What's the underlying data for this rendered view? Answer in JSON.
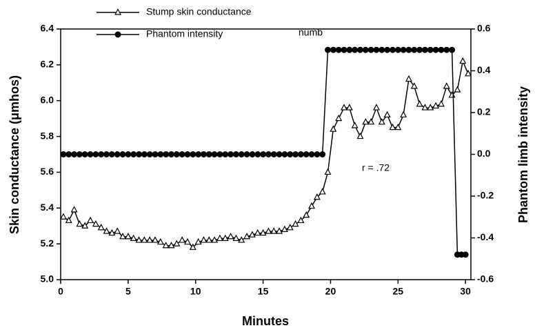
{
  "chart_data": {
    "type": "line",
    "legend": "upper left",
    "annotations": [
      "numb",
      "r = .72"
    ],
    "xlabel": "Minutes",
    "ylabel": "Skin conductance (μmhos)",
    "y2label": "Phantom limb intensity",
    "xlim": [
      0,
      30.4
    ],
    "xticks": [
      0,
      5,
      10,
      15,
      20,
      25,
      30
    ],
    "ylim": [
      5.0,
      6.4
    ],
    "yticks": [
      {
        "value": 5.0,
        "label": "5.0"
      },
      5.2,
      5.4,
      5.6,
      5.8,
      {
        "value": 6.0,
        "label": "6.0"
      },
      6.2,
      6.4
    ],
    "y2lim": [
      -0.6,
      0.6
    ],
    "y2ticks": [
      -0.6,
      -0.4,
      -0.2,
      {
        "value": 0.0,
        "label": "0.0"
      },
      0.2,
      0.4,
      0.6
    ],
    "series": [
      {
        "name": "Stump skin conductance",
        "color": "#000000",
        "marker": "triangle",
        "x": [
          0.2,
          0.6,
          1,
          1.4,
          1.8,
          2.2,
          2.6,
          3,
          3.4,
          3.8,
          4.2,
          4.6,
          5,
          5.4,
          5.8,
          6.2,
          6.6,
          7,
          7.4,
          7.8,
          8.2,
          8.6,
          9,
          9.4,
          9.8,
          10.2,
          10.6,
          11,
          11.4,
          11.8,
          12.2,
          12.6,
          13,
          13.4,
          13.8,
          14.2,
          14.6,
          15,
          15.4,
          15.8,
          16.2,
          16.6,
          17,
          17.4,
          17.8,
          18.2,
          18.6,
          19,
          19.4,
          19.8,
          20.2,
          20.6,
          21,
          21.4,
          21.8,
          22.2,
          22.6,
          23,
          23.4,
          23.8,
          24.2,
          24.6,
          25,
          25.4,
          25.8,
          26.2,
          26.6,
          27,
          27.4,
          27.8,
          28.2,
          28.6,
          29,
          29.4,
          29.8,
          30.2
        ],
        "values": [
          5.35,
          5.33,
          5.39,
          5.31,
          5.3,
          5.33,
          5.31,
          5.29,
          5.27,
          5.26,
          5.27,
          5.24,
          5.24,
          5.23,
          5.22,
          5.22,
          5.22,
          5.22,
          5.21,
          5.19,
          5.19,
          5.2,
          5.22,
          5.21,
          5.18,
          5.21,
          5.22,
          5.22,
          5.22,
          5.23,
          5.23,
          5.24,
          5.23,
          5.22,
          5.24,
          5.25,
          5.26,
          5.26,
          5.27,
          5.27,
          5.27,
          5.28,
          5.29,
          5.31,
          5.33,
          5.36,
          5.41,
          5.46,
          5.49,
          5.6,
          5.84,
          5.9,
          5.96,
          5.96,
          5.86,
          5.8,
          5.88,
          5.88,
          5.96,
          5.88,
          5.92,
          5.85,
          5.85,
          5.92,
          6.12,
          6.08,
          5.98,
          5.96,
          5.96,
          5.97,
          5.98,
          6.08,
          6.03,
          6.06,
          6.22,
          6.15
        ]
      },
      {
        "name": "Phantom intensity",
        "color": "#000000",
        "marker": "circle",
        "axis": "y2",
        "x": [
          0.2,
          0.6,
          1,
          1.4,
          1.8,
          2.2,
          2.6,
          3,
          3.4,
          3.8,
          4.2,
          4.6,
          5,
          5.4,
          5.8,
          6.2,
          6.6,
          7,
          7.4,
          7.8,
          8.2,
          8.6,
          9,
          9.4,
          9.8,
          10.2,
          10.6,
          11,
          11.4,
          11.8,
          12.2,
          12.6,
          13,
          13.4,
          13.8,
          14.2,
          14.6,
          15,
          15.4,
          15.8,
          16.2,
          16.6,
          17,
          17.4,
          17.8,
          18.2,
          18.6,
          19,
          19.4,
          19.8,
          20.2,
          20.6,
          21,
          21.4,
          21.8,
          22.2,
          22.6,
          23,
          23.4,
          23.8,
          24.2,
          24.6,
          25,
          25.4,
          25.8,
          26.2,
          26.6,
          27,
          27.4,
          27.8,
          28.2,
          28.6,
          29,
          29.4,
          29.7,
          30
        ],
        "values": [
          0,
          0,
          0,
          0,
          0,
          0,
          0,
          0,
          0,
          0,
          0,
          0,
          0,
          0,
          0,
          0,
          0,
          0,
          0,
          0,
          0,
          0,
          0,
          0,
          0,
          0,
          0,
          0,
          0,
          0,
          0,
          0,
          0,
          0,
          0,
          0,
          0,
          0,
          0,
          0,
          0,
          0,
          0,
          0,
          0,
          0,
          0,
          0,
          0,
          0.5,
          0.5,
          0.5,
          0.5,
          0.5,
          0.5,
          0.5,
          0.5,
          0.5,
          0.5,
          0.5,
          0.5,
          0.5,
          0.5,
          0.5,
          0.5,
          0.5,
          0.5,
          0.5,
          0.5,
          0.5,
          0.5,
          0.5,
          0.5,
          -0.48,
          -0.48,
          -0.48
        ]
      }
    ]
  }
}
